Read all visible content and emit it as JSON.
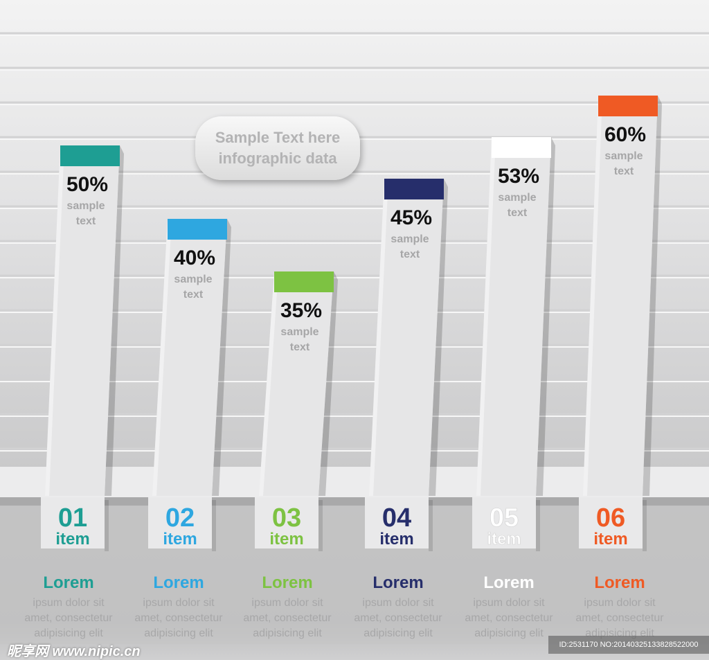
{
  "chart_data": {
    "type": "bar",
    "title": "",
    "ylim": [
      0,
      100
    ],
    "categories": [
      "01",
      "02",
      "03",
      "04",
      "05",
      "06"
    ],
    "category_sublabel": "item",
    "values": [
      50,
      40,
      35,
      45,
      53,
      60
    ],
    "value_labels": [
      "50%",
      "40%",
      "35%",
      "45%",
      "53%",
      "60%"
    ],
    "bar_caption": [
      "sample",
      "text"
    ],
    "colors": [
      "#1e9e93",
      "#2ea7e0",
      "#7dc242",
      "#262e6b",
      "#ffffff",
      "#ef5a24"
    ],
    "number_colors": [
      "#1e9e93",
      "#2ea7e0",
      "#7dc242",
      "#262e6b",
      "#ffffff",
      "#ef5a24"
    ]
  },
  "bubble": {
    "line1": "Sample Text here",
    "line2": "infographic data"
  },
  "legend": [
    {
      "title": "Lorem",
      "lines": [
        "ipsum dolor sit",
        "amet, consectetur",
        "adipisicing elit"
      ]
    },
    {
      "title": "Lorem",
      "lines": [
        "ipsum dolor sit",
        "amet, consectetur",
        "adipisicing elit"
      ]
    },
    {
      "title": "Lorem",
      "lines": [
        "ipsum dolor sit",
        "amet, consectetur",
        "adipisicing elit"
      ]
    },
    {
      "title": "Lorem",
      "lines": [
        "ipsum dolor sit",
        "amet, consectetur",
        "adipisicing elit"
      ]
    },
    {
      "title": "Lorem",
      "lines": [
        "ipsum dolor sit",
        "amet, consectetur",
        "adipisicing elit"
      ]
    },
    {
      "title": "Lorem",
      "lines": [
        "ipsum dolor sit",
        "amet, consectetur",
        "adipisicing elit"
      ]
    }
  ],
  "footer": {
    "logo": "昵享网 www.nipic.cn",
    "id": "ID:2531170 NO:20140325133828522000"
  }
}
